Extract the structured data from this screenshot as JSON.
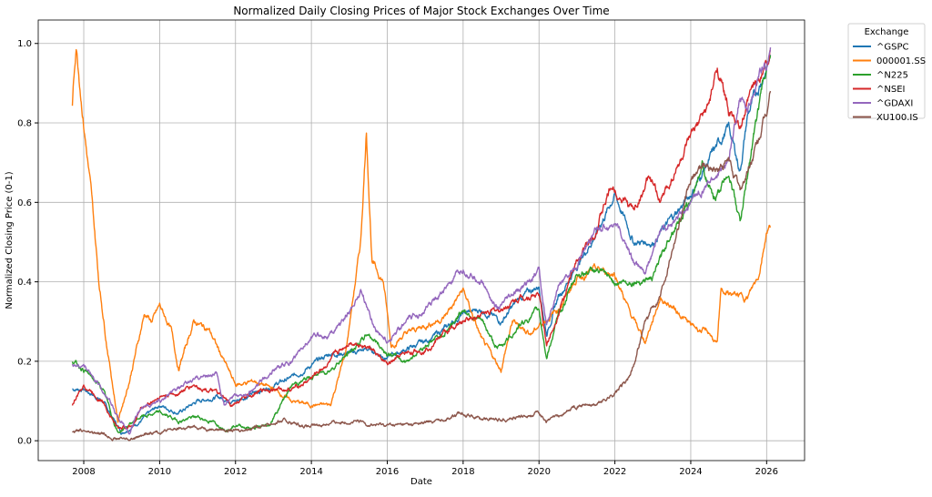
{
  "chart_data": {
    "type": "line",
    "title": "Normalized Daily Closing Prices of Major Stock Exchanges Over Time",
    "xlabel": "Date",
    "ylabel": "Normalized Closing Price (0-1)",
    "xlim": [
      2006.8,
      2027.0
    ],
    "ylim": [
      -0.05,
      1.059
    ],
    "xticks": [
      2008,
      2010,
      2012,
      2014,
      2016,
      2018,
      2020,
      2022,
      2024,
      2026
    ],
    "xtick_labels": [
      "2008",
      "2010",
      "2012",
      "2014",
      "2016",
      "2018",
      "2020",
      "2022",
      "2024",
      "2026"
    ],
    "yticks": [
      0.0,
      0.2,
      0.4,
      0.6,
      0.8,
      1.0
    ],
    "ytick_labels": [
      "0.0",
      "0.2",
      "0.4",
      "0.6",
      "0.8",
      "1.0"
    ],
    "grid": true,
    "legend": {
      "title": "Exchange",
      "placement": "outside-top-right"
    },
    "series": [
      {
        "name": "^GSPC",
        "color": "#1f77b4",
        "x": [
          2007.7,
          2008,
          2008.5,
          2009.0,
          2009.5,
          2010,
          2010.5,
          2011,
          2011.5,
          2012,
          2012.5,
          2013,
          2013.5,
          2014,
          2014.5,
          2015,
          2015.5,
          2016,
          2016.5,
          2017,
          2017.5,
          2018,
          2018.5,
          2019,
          2019.5,
          2020,
          2020.2,
          2020.5,
          2021,
          2021.5,
          2022,
          2022.5,
          2023,
          2023.5,
          2024,
          2024.5,
          2025,
          2025.3,
          2025.5,
          2026,
          2026.1
        ],
        "y": [
          0.13,
          0.13,
          0.1,
          0.02,
          0.05,
          0.09,
          0.07,
          0.1,
          0.11,
          0.1,
          0.12,
          0.14,
          0.16,
          0.19,
          0.22,
          0.22,
          0.23,
          0.21,
          0.23,
          0.25,
          0.28,
          0.32,
          0.33,
          0.3,
          0.36,
          0.39,
          0.27,
          0.36,
          0.44,
          0.52,
          0.62,
          0.5,
          0.5,
          0.56,
          0.62,
          0.71,
          0.79,
          0.68,
          0.82,
          0.94,
          0.97
        ]
      },
      {
        "name": "000001.SS",
        "color": "#ff7f0e",
        "x": [
          2007.7,
          2007.8,
          2008,
          2008.2,
          2008.4,
          2008.6,
          2008.9,
          2009.2,
          2009.6,
          2009.8,
          2010,
          2010.3,
          2010.5,
          2010.9,
          2011.3,
          2011.6,
          2012,
          2012.5,
          2013,
          2013.5,
          2014,
          2014.5,
          2014.9,
          2015.3,
          2015.45,
          2015.6,
          2015.9,
          2016.1,
          2016.5,
          2017,
          2017.5,
          2018,
          2018.5,
          2019,
          2019.3,
          2019.8,
          2020,
          2020.5,
          2021,
          2021.5,
          2022,
          2022.4,
          2022.8,
          2023.2,
          2023.6,
          2024,
          2024.5,
          2024.7,
          2024.8,
          2025,
          2025.5,
          2025.8,
          2026,
          2026.1
        ],
        "y": [
          0.85,
          1.0,
          0.8,
          0.62,
          0.4,
          0.25,
          0.05,
          0.15,
          0.32,
          0.3,
          0.34,
          0.28,
          0.18,
          0.3,
          0.28,
          0.22,
          0.14,
          0.15,
          0.13,
          0.1,
          0.09,
          0.09,
          0.22,
          0.5,
          0.78,
          0.45,
          0.4,
          0.24,
          0.27,
          0.29,
          0.31,
          0.38,
          0.25,
          0.18,
          0.3,
          0.27,
          0.29,
          0.33,
          0.41,
          0.43,
          0.42,
          0.32,
          0.25,
          0.36,
          0.33,
          0.29,
          0.27,
          0.24,
          0.38,
          0.37,
          0.36,
          0.42,
          0.53,
          0.54
        ]
      },
      {
        "name": "^N225",
        "color": "#2ca02c",
        "x": [
          2007.7,
          2008,
          2008.5,
          2008.9,
          2009.5,
          2010,
          2010.5,
          2011,
          2011.3,
          2011.8,
          2012,
          2012.5,
          2012.9,
          2013.3,
          2013.5,
          2014,
          2014.5,
          2015,
          2015.5,
          2016,
          2016.5,
          2017,
          2017.5,
          2018,
          2018.5,
          2018.9,
          2019.5,
          2020,
          2020.2,
          2020.5,
          2021,
          2021.5,
          2022,
          2022.5,
          2023,
          2023.5,
          2024,
          2024.3,
          2024.6,
          2025,
          2025.3,
          2025.6,
          2025.9,
          2026.1
        ],
        "y": [
          0.2,
          0.18,
          0.13,
          0.02,
          0.06,
          0.07,
          0.05,
          0.06,
          0.05,
          0.03,
          0.04,
          0.03,
          0.04,
          0.11,
          0.14,
          0.16,
          0.18,
          0.22,
          0.27,
          0.22,
          0.2,
          0.24,
          0.27,
          0.33,
          0.3,
          0.23,
          0.29,
          0.33,
          0.21,
          0.31,
          0.42,
          0.43,
          0.4,
          0.4,
          0.41,
          0.53,
          0.6,
          0.7,
          0.6,
          0.68,
          0.55,
          0.73,
          0.9,
          0.97
        ]
      },
      {
        "name": "^NSEI",
        "color": "#d62728",
        "x": [
          2007.7,
          2008,
          2008.5,
          2008.9,
          2009.3,
          2009.5,
          2010,
          2010.5,
          2010.9,
          2011.5,
          2011.9,
          2012.3,
          2012.8,
          2013.5,
          2013.9,
          2014.5,
          2015,
          2015.5,
          2016,
          2016.5,
          2017,
          2017.5,
          2018,
          2018.5,
          2019,
          2019.5,
          2020,
          2020.2,
          2020.5,
          2021,
          2021.5,
          2021.9,
          2022.5,
          2022.9,
          2023.2,
          2023.6,
          2024,
          2024.5,
          2024.7,
          2025,
          2025.3,
          2025.6,
          2026,
          2026.1
        ],
        "y": [
          0.09,
          0.14,
          0.1,
          0.03,
          0.04,
          0.08,
          0.11,
          0.12,
          0.14,
          0.12,
          0.09,
          0.11,
          0.13,
          0.13,
          0.15,
          0.2,
          0.25,
          0.24,
          0.19,
          0.22,
          0.23,
          0.27,
          0.3,
          0.32,
          0.33,
          0.36,
          0.37,
          0.24,
          0.32,
          0.45,
          0.53,
          0.64,
          0.58,
          0.66,
          0.6,
          0.68,
          0.76,
          0.85,
          0.94,
          0.83,
          0.78,
          0.88,
          0.95,
          0.98
        ]
      },
      {
        "name": "^GDAXI",
        "color": "#9467bd",
        "x": [
          2007.7,
          2008,
          2008.5,
          2008.9,
          2009.2,
          2009.5,
          2010,
          2010.5,
          2011,
          2011.5,
          2011.7,
          2012,
          2012.5,
          2013,
          2013.5,
          2014,
          2014.5,
          2015,
          2015.3,
          2015.7,
          2016,
          2016.5,
          2017,
          2017.5,
          2018,
          2018.5,
          2018.9,
          2019.5,
          2020,
          2020.2,
          2020.5,
          2021,
          2021.5,
          2022,
          2022.5,
          2022.8,
          2023.2,
          2023.6,
          2024,
          2024.5,
          2025,
          2025.3,
          2025.5,
          2025.8,
          2026,
          2026.1
        ],
        "y": [
          0.19,
          0.19,
          0.13,
          0.06,
          0.02,
          0.08,
          0.1,
          0.13,
          0.16,
          0.17,
          0.09,
          0.11,
          0.13,
          0.18,
          0.2,
          0.26,
          0.27,
          0.32,
          0.38,
          0.28,
          0.25,
          0.3,
          0.33,
          0.38,
          0.43,
          0.4,
          0.33,
          0.38,
          0.43,
          0.28,
          0.39,
          0.44,
          0.53,
          0.55,
          0.45,
          0.42,
          0.53,
          0.55,
          0.6,
          0.65,
          0.7,
          0.87,
          0.83,
          0.92,
          0.94,
          0.99
        ]
      },
      {
        "name": "XU100.IS",
        "color": "#8c564b",
        "x": [
          2007.7,
          2008,
          2008.5,
          2008.9,
          2009.3,
          2009.8,
          2010.5,
          2011,
          2011.5,
          2012,
          2012.5,
          2013.3,
          2013.7,
          2014,
          2014.5,
          2015,
          2015.7,
          2016,
          2016.5,
          2017,
          2017.5,
          2018,
          2018.5,
          2019,
          2019.5,
          2020,
          2020.2,
          2020.6,
          2021,
          2021.5,
          2022,
          2022.4,
          2022.8,
          2023.2,
          2023.6,
          2024,
          2024.3,
          2024.7,
          2025,
          2025.3,
          2025.6,
          2026,
          2026.1
        ],
        "y": [
          0.025,
          0.025,
          0.015,
          0.005,
          0.005,
          0.02,
          0.03,
          0.035,
          0.03,
          0.025,
          0.035,
          0.05,
          0.04,
          0.035,
          0.045,
          0.05,
          0.04,
          0.04,
          0.04,
          0.045,
          0.055,
          0.07,
          0.055,
          0.055,
          0.06,
          0.07,
          0.05,
          0.065,
          0.09,
          0.09,
          0.12,
          0.16,
          0.3,
          0.37,
          0.52,
          0.65,
          0.7,
          0.68,
          0.7,
          0.63,
          0.7,
          0.82,
          0.88
        ]
      }
    ]
  }
}
